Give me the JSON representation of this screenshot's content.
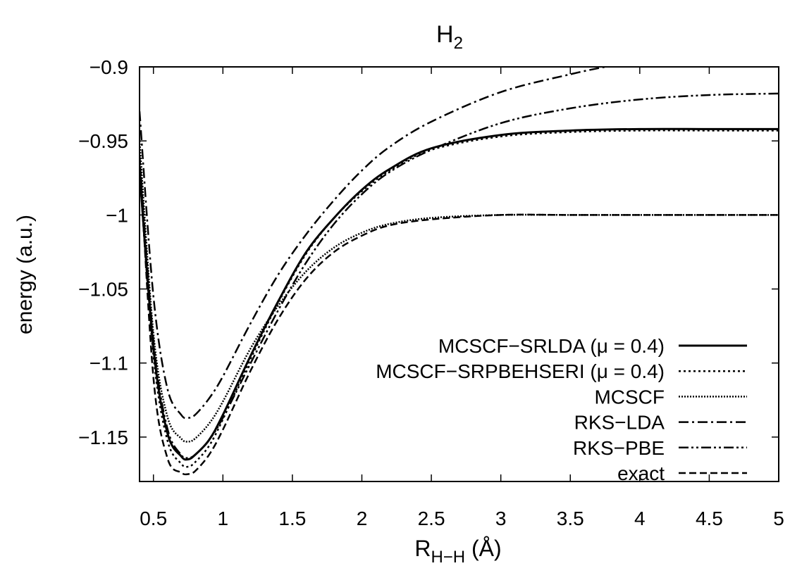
{
  "chart_data": {
    "type": "line",
    "title": "H",
    "title_sub": "2",
    "xlabel": "R",
    "xlabel_sub": "H−H",
    "xlabel_unit": " (Å)",
    "ylabel": "energy (a.u.)",
    "xlim": [
      0.4,
      5
    ],
    "ylim": [
      -1.18,
      -0.9
    ],
    "xticks": [
      {
        "v": 0.5,
        "label": "0.5"
      },
      {
        "v": 1,
        "label": "1"
      },
      {
        "v": 1.5,
        "label": "1.5"
      },
      {
        "v": 2,
        "label": "2"
      },
      {
        "v": 2.5,
        "label": "2.5"
      },
      {
        "v": 3,
        "label": "3"
      },
      {
        "v": 3.5,
        "label": "3.5"
      },
      {
        "v": 4,
        "label": "4"
      },
      {
        "v": 4.5,
        "label": "4.5"
      },
      {
        "v": 5,
        "label": "5"
      }
    ],
    "yticks": [
      {
        "v": -0.9,
        "label": "−0.9"
      },
      {
        "v": -0.95,
        "label": "−0.95"
      },
      {
        "v": -1,
        "label": "−1"
      },
      {
        "v": -1.05,
        "label": "−1.05"
      },
      {
        "v": -1.1,
        "label": "−1.1"
      },
      {
        "v": -1.15,
        "label": "−1.15"
      }
    ],
    "grid": false,
    "legend_position": "bottom-right",
    "series": [
      {
        "name": "MCSCF−SRLDA (μ = 0.4)",
        "dash": "solid",
        "x": [
          0.4,
          0.5,
          0.6,
          0.7,
          0.75,
          0.8,
          0.9,
          1.0,
          1.2,
          1.4,
          1.6,
          1.8,
          2.0,
          2.2,
          2.5,
          3.0,
          3.5,
          4.0,
          4.5,
          5.0
        ],
        "y": [
          -0.97,
          -1.09,
          -1.147,
          -1.163,
          -1.165,
          -1.162,
          -1.152,
          -1.135,
          -1.095,
          -1.058,
          -1.025,
          -1.002,
          -0.983,
          -0.969,
          -0.955,
          -0.946,
          -0.943,
          -0.942,
          -0.942,
          -0.942
        ]
      },
      {
        "name": "MCSCF−SRPBEHSERI (μ = 0.4)",
        "dash": "dotted",
        "x": [
          0.4,
          0.5,
          0.6,
          0.7,
          0.75,
          0.8,
          0.9,
          1.0,
          1.2,
          1.4,
          1.6,
          1.8,
          2.0,
          2.2,
          2.5,
          3.0,
          3.5,
          4.0,
          4.5,
          5.0
        ],
        "y": [
          -0.97,
          -1.095,
          -1.152,
          -1.168,
          -1.17,
          -1.167,
          -1.156,
          -1.138,
          -1.097,
          -1.059,
          -1.026,
          -1.002,
          -0.984,
          -0.97,
          -0.956,
          -0.947,
          -0.944,
          -0.943,
          -0.943,
          -0.943
        ]
      },
      {
        "name": "MCSCF",
        "dash": "densedot",
        "x": [
          0.4,
          0.5,
          0.6,
          0.7,
          0.75,
          0.8,
          0.9,
          1.0,
          1.2,
          1.4,
          1.6,
          1.8,
          2.0,
          2.2,
          2.5,
          3.0,
          3.5,
          4.0,
          4.5,
          5.0
        ],
        "y": [
          -0.95,
          -1.08,
          -1.136,
          -1.151,
          -1.153,
          -1.151,
          -1.141,
          -1.126,
          -1.09,
          -1.061,
          -1.038,
          -1.022,
          -1.012,
          -1.006,
          -1.002,
          -1.0,
          -1.0,
          -1.0,
          -1.0,
          -1.0
        ]
      },
      {
        "name": "RKS−LDA",
        "dash": "dashdot",
        "x": [
          0.4,
          0.5,
          0.6,
          0.7,
          0.75,
          0.8,
          0.9,
          1.0,
          1.2,
          1.4,
          1.6,
          1.8,
          2.0,
          2.2,
          2.5,
          3.0,
          3.5,
          3.75
        ],
        "y": [
          -0.93,
          -1.055,
          -1.117,
          -1.135,
          -1.137,
          -1.135,
          -1.124,
          -1.109,
          -1.073,
          -1.04,
          -1.013,
          -0.99,
          -0.97,
          -0.954,
          -0.937,
          -0.917,
          -0.905,
          -0.9
        ]
      },
      {
        "name": "RKS−PBE",
        "dash": "dashdotdot",
        "x": [
          0.4,
          0.5,
          0.6,
          0.7,
          0.75,
          0.8,
          0.9,
          1.0,
          1.2,
          1.4,
          1.6,
          1.8,
          2.0,
          2.2,
          2.5,
          3.0,
          3.5,
          4.0,
          4.5,
          5.0
        ],
        "y": [
          -0.96,
          -1.085,
          -1.144,
          -1.162,
          -1.164,
          -1.162,
          -1.152,
          -1.137,
          -1.1,
          -1.064,
          -1.032,
          -1.006,
          -0.986,
          -0.971,
          -0.956,
          -0.938,
          -0.928,
          -0.922,
          -0.919,
          -0.918
        ]
      },
      {
        "name": "exact",
        "dash": "dashed",
        "x": [
          0.4,
          0.5,
          0.6,
          0.7,
          0.75,
          0.8,
          0.9,
          1.0,
          1.2,
          1.4,
          1.6,
          1.8,
          2.0,
          2.2,
          2.5,
          3.0,
          3.5,
          4.0,
          4.5,
          5.0
        ],
        "y": [
          -0.96,
          -1.11,
          -1.164,
          -1.174,
          -1.175,
          -1.173,
          -1.162,
          -1.145,
          -1.105,
          -1.07,
          -1.043,
          -1.025,
          -1.014,
          -1.007,
          -1.003,
          -1.0,
          -1.0,
          -1.0,
          -1.0,
          -1.0
        ]
      }
    ]
  }
}
